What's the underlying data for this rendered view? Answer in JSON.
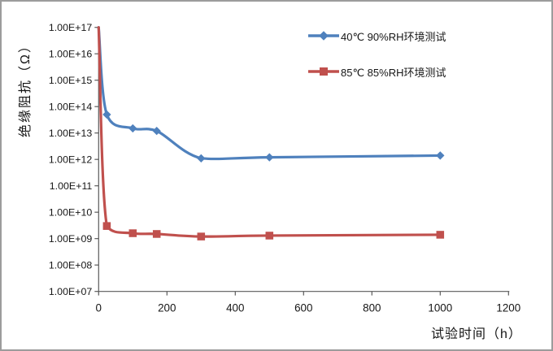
{
  "chart_data": {
    "type": "line",
    "title": "",
    "xlabel": "试验时间（h）",
    "ylabel": "绝缘阻抗（Ω）",
    "y_scale": "log",
    "y_exp_range": [
      7,
      17
    ],
    "x_range": [
      0,
      1200
    ],
    "grid": false,
    "legend_position": "inside-top-right",
    "x": [
      0,
      24,
      100,
      170,
      300,
      500,
      1000
    ],
    "series": [
      {
        "name": "40℃ 90%RH环境测试",
        "color": "#4F81BD",
        "marker": "diamond",
        "values": [
          1e+17,
          50000000000000.0,
          15000000000000.0,
          12000000000000.0,
          1100000000000.0,
          1200000000000.0,
          1400000000000.0
        ]
      },
      {
        "name": "85℃ 85%RH环境测试",
        "color": "#C0504D",
        "marker": "square",
        "values": [
          1e+17,
          3000000000.0,
          1600000000.0,
          1500000000.0,
          1200000000.0,
          1300000000.0,
          1400000000.0
        ]
      }
    ],
    "x_ticks": [
      0,
      200,
      400,
      600,
      800,
      1000,
      1200
    ],
    "y_ticks": [
      "1.00E+17",
      "1.00E+16",
      "1.00E+15",
      "1.00E+14",
      "1.00E+13",
      "1.00E+12",
      "1.00E+11",
      "1.00E+10",
      "1.00E+09",
      "1.00E+08",
      "1.00E+07"
    ]
  },
  "colors": {
    "axis": "#595959",
    "tick_text": "#161616",
    "frame_border": "#9c9c9c",
    "background": "#ffffff"
  }
}
